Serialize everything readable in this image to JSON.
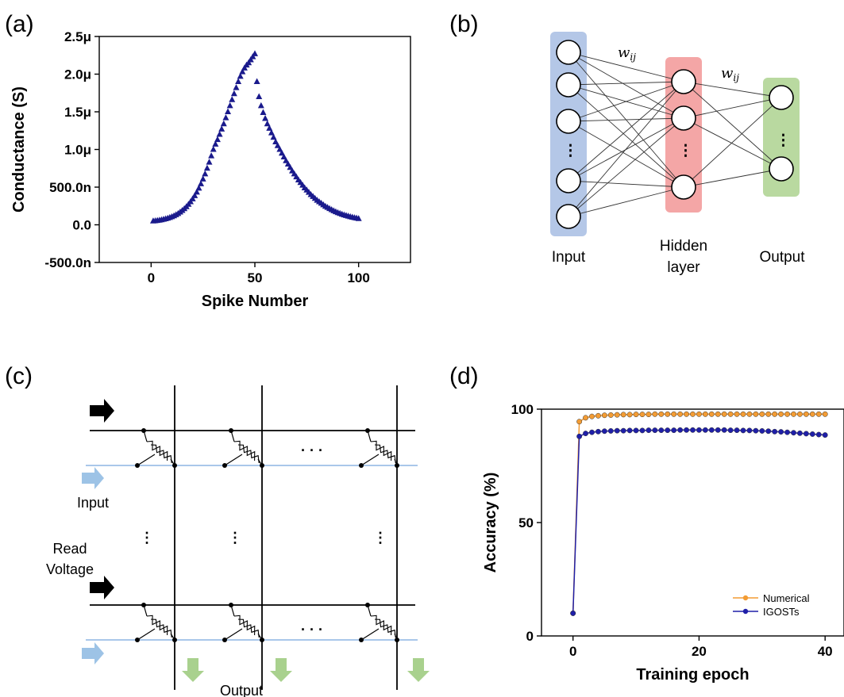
{
  "panels": {
    "a": "(a)",
    "b": "(b)",
    "c": "(c)",
    "d": "(d)"
  },
  "network": {
    "input_label": "Input",
    "hidden_label_1": "Hidden",
    "hidden_label_2": "layer",
    "output_label": "Output",
    "weight_label_1": "w",
    "weight_sub_1": "ij",
    "weight_label_2": "w",
    "weight_sub_2": "ij",
    "dots": "⋮",
    "colors": {
      "input_band": "#b4c7e7",
      "hidden_band": "#f4a6a6",
      "output_band": "#b9d9a0"
    }
  },
  "crossbar": {
    "input_label": "Input",
    "read_label_1": "Read",
    "read_label_2": "Voltage",
    "output_label": "Output",
    "hdots": "· · ·",
    "vdots": "⋮",
    "colors": {
      "row_line": "#000000",
      "input_line": "#a9c7ea",
      "blue_arrow": "#9dc3e6",
      "black_arrow": "#000000",
      "green_arrow": "#a9d18e"
    }
  },
  "chart_data": [
    {
      "panel": "a",
      "type": "scatter",
      "xlabel": "Spike Number",
      "ylabel": "Conductance (S)",
      "xlim": [
        -25,
        125
      ],
      "ylim": [
        -5e-07,
        2.5e-06
      ],
      "xticks": [
        0,
        50,
        100
      ],
      "xtick_labels": [
        "0",
        "50",
        "100"
      ],
      "yticks": [
        -5e-07,
        0,
        5e-07,
        1e-06,
        1.5e-06,
        2e-06,
        2.5e-06
      ],
      "ytick_labels": [
        "-500.0n",
        "0.0",
        "500.0n",
        "1.0μ",
        "1.5μ",
        "2.0μ",
        "2.5μ"
      ],
      "marker": "triangle",
      "color": "#1a1a8c",
      "series": [
        {
          "x": [
            1,
            2,
            3,
            4,
            5,
            6,
            7,
            8,
            9,
            10,
            11,
            12,
            13,
            14,
            15,
            16,
            17,
            18,
            19,
            20,
            21,
            22,
            23,
            24,
            25,
            26,
            27,
            28,
            29,
            30,
            31,
            32,
            33,
            34,
            35,
            36,
            37,
            38,
            39,
            40,
            41,
            42,
            43,
            44,
            45,
            46,
            47,
            48,
            49,
            50,
            51,
            52,
            53,
            54,
            55,
            56,
            57,
            58,
            59,
            60,
            61,
            62,
            63,
            64,
            65,
            66,
            67,
            68,
            69,
            70,
            71,
            72,
            73,
            74,
            75,
            76,
            77,
            78,
            79,
            80,
            81,
            82,
            83,
            84,
            85,
            86,
            87,
            88,
            89,
            90,
            91,
            92,
            93,
            94,
            95,
            96,
            97,
            98,
            99,
            100
          ],
          "y": [
            5e-08,
            5.3e-08,
            5.7e-08,
            6.1e-08,
            6.6e-08,
            7.2e-08,
            7.9e-08,
            8.7e-08,
            9.6e-08,
            1.07e-07,
            1.19e-07,
            1.33e-07,
            1.49e-07,
            1.68e-07,
            1.89e-07,
            2.13e-07,
            2.4e-07,
            2.71e-07,
            3.05e-07,
            3.43e-07,
            3.86e-07,
            4.33e-07,
            4.85e-07,
            5.43e-07,
            6.06e-07,
            6.75e-07,
            7.5e-07,
            8.3e-07,
            9.15e-07,
            1e-06,
            1.07e-06,
            1.13e-06,
            1.2e-06,
            1.27e-06,
            1.34e-06,
            1.42e-06,
            1.5e-06,
            1.58e-06,
            1.66e-06,
            1.74e-06,
            1.82e-06,
            1.9e-06,
            1.97e-06,
            2.03e-06,
            2.08e-06,
            2.12e-06,
            2.15e-06,
            2.19e-06,
            2.23e-06,
            2.27e-06,
            1.9e-06,
            1.7e-06,
            1.58e-06,
            1.49e-06,
            1.41e-06,
            1.34e-06,
            1.28e-06,
            1.22e-06,
            1.16e-06,
            1.1e-06,
            1.05e-06,
            1e-06,
            9.5e-07,
            9e-07,
            8.5e-07,
            8.05e-07,
            7.6e-07,
            7.15e-07,
            6.75e-07,
            6.35e-07,
            5.95e-07,
            5.6e-07,
            5.25e-07,
            4.9e-07,
            4.6e-07,
            4.3e-07,
            4e-07,
            3.75e-07,
            3.5e-07,
            3.25e-07,
            3.05e-07,
            2.85e-07,
            2.65e-07,
            2.45e-07,
            2.3e-07,
            2.15e-07,
            2e-07,
            1.85e-07,
            1.72e-07,
            1.6e-07,
            1.5e-07,
            1.4e-07,
            1.3e-07,
            1.22e-07,
            1.14e-07,
            1.07e-07,
            1e-07,
            9.4e-08,
            8.8e-08,
            8.2e-08
          ]
        }
      ]
    },
    {
      "panel": "d",
      "type": "line",
      "xlabel": "Training epoch",
      "ylabel": "Accuracy (%)",
      "xlim": [
        -5,
        43
      ],
      "ylim": [
        0,
        100
      ],
      "xticks": [
        0,
        20,
        40
      ],
      "xtick_labels": [
        "0",
        "20",
        "40"
      ],
      "yticks": [
        0,
        50,
        100
      ],
      "ytick_labels": [
        "0",
        "50",
        "100"
      ],
      "legend": "bottom-right",
      "x": [
        0,
        1,
        2,
        3,
        4,
        5,
        6,
        7,
        8,
        9,
        10,
        11,
        12,
        13,
        14,
        15,
        16,
        17,
        18,
        19,
        20,
        21,
        22,
        23,
        24,
        25,
        26,
        27,
        28,
        29,
        30,
        31,
        32,
        33,
        34,
        35,
        36,
        37,
        38,
        39,
        40
      ],
      "series": [
        {
          "name": "Numerical",
          "color": "#f39c34",
          "values": [
            10,
            94.5,
            96.2,
            96.8,
            97.1,
            97.3,
            97.4,
            97.5,
            97.6,
            97.6,
            97.7,
            97.7,
            97.7,
            97.8,
            97.8,
            97.8,
            97.8,
            97.8,
            97.8,
            97.8,
            97.8,
            97.8,
            97.8,
            97.8,
            97.8,
            97.8,
            97.8,
            97.8,
            97.8,
            97.8,
            97.8,
            97.8,
            97.8,
            97.8,
            97.8,
            97.8,
            97.8,
            97.8,
            97.8,
            97.8,
            97.8
          ]
        },
        {
          "name": "IGOSTs",
          "color": "#1f1fa8",
          "values": [
            10,
            88,
            89.3,
            89.8,
            90.1,
            90.3,
            90.4,
            90.5,
            90.5,
            90.6,
            90.6,
            90.6,
            90.7,
            90.7,
            90.7,
            90.7,
            90.7,
            90.8,
            90.8,
            90.8,
            90.8,
            90.8,
            90.8,
            90.8,
            90.8,
            90.7,
            90.7,
            90.6,
            90.6,
            90.5,
            90.4,
            90.3,
            90.1,
            90.0,
            89.8,
            89.6,
            89.4,
            89.2,
            89.0,
            88.8,
            88.6
          ]
        }
      ]
    }
  ]
}
